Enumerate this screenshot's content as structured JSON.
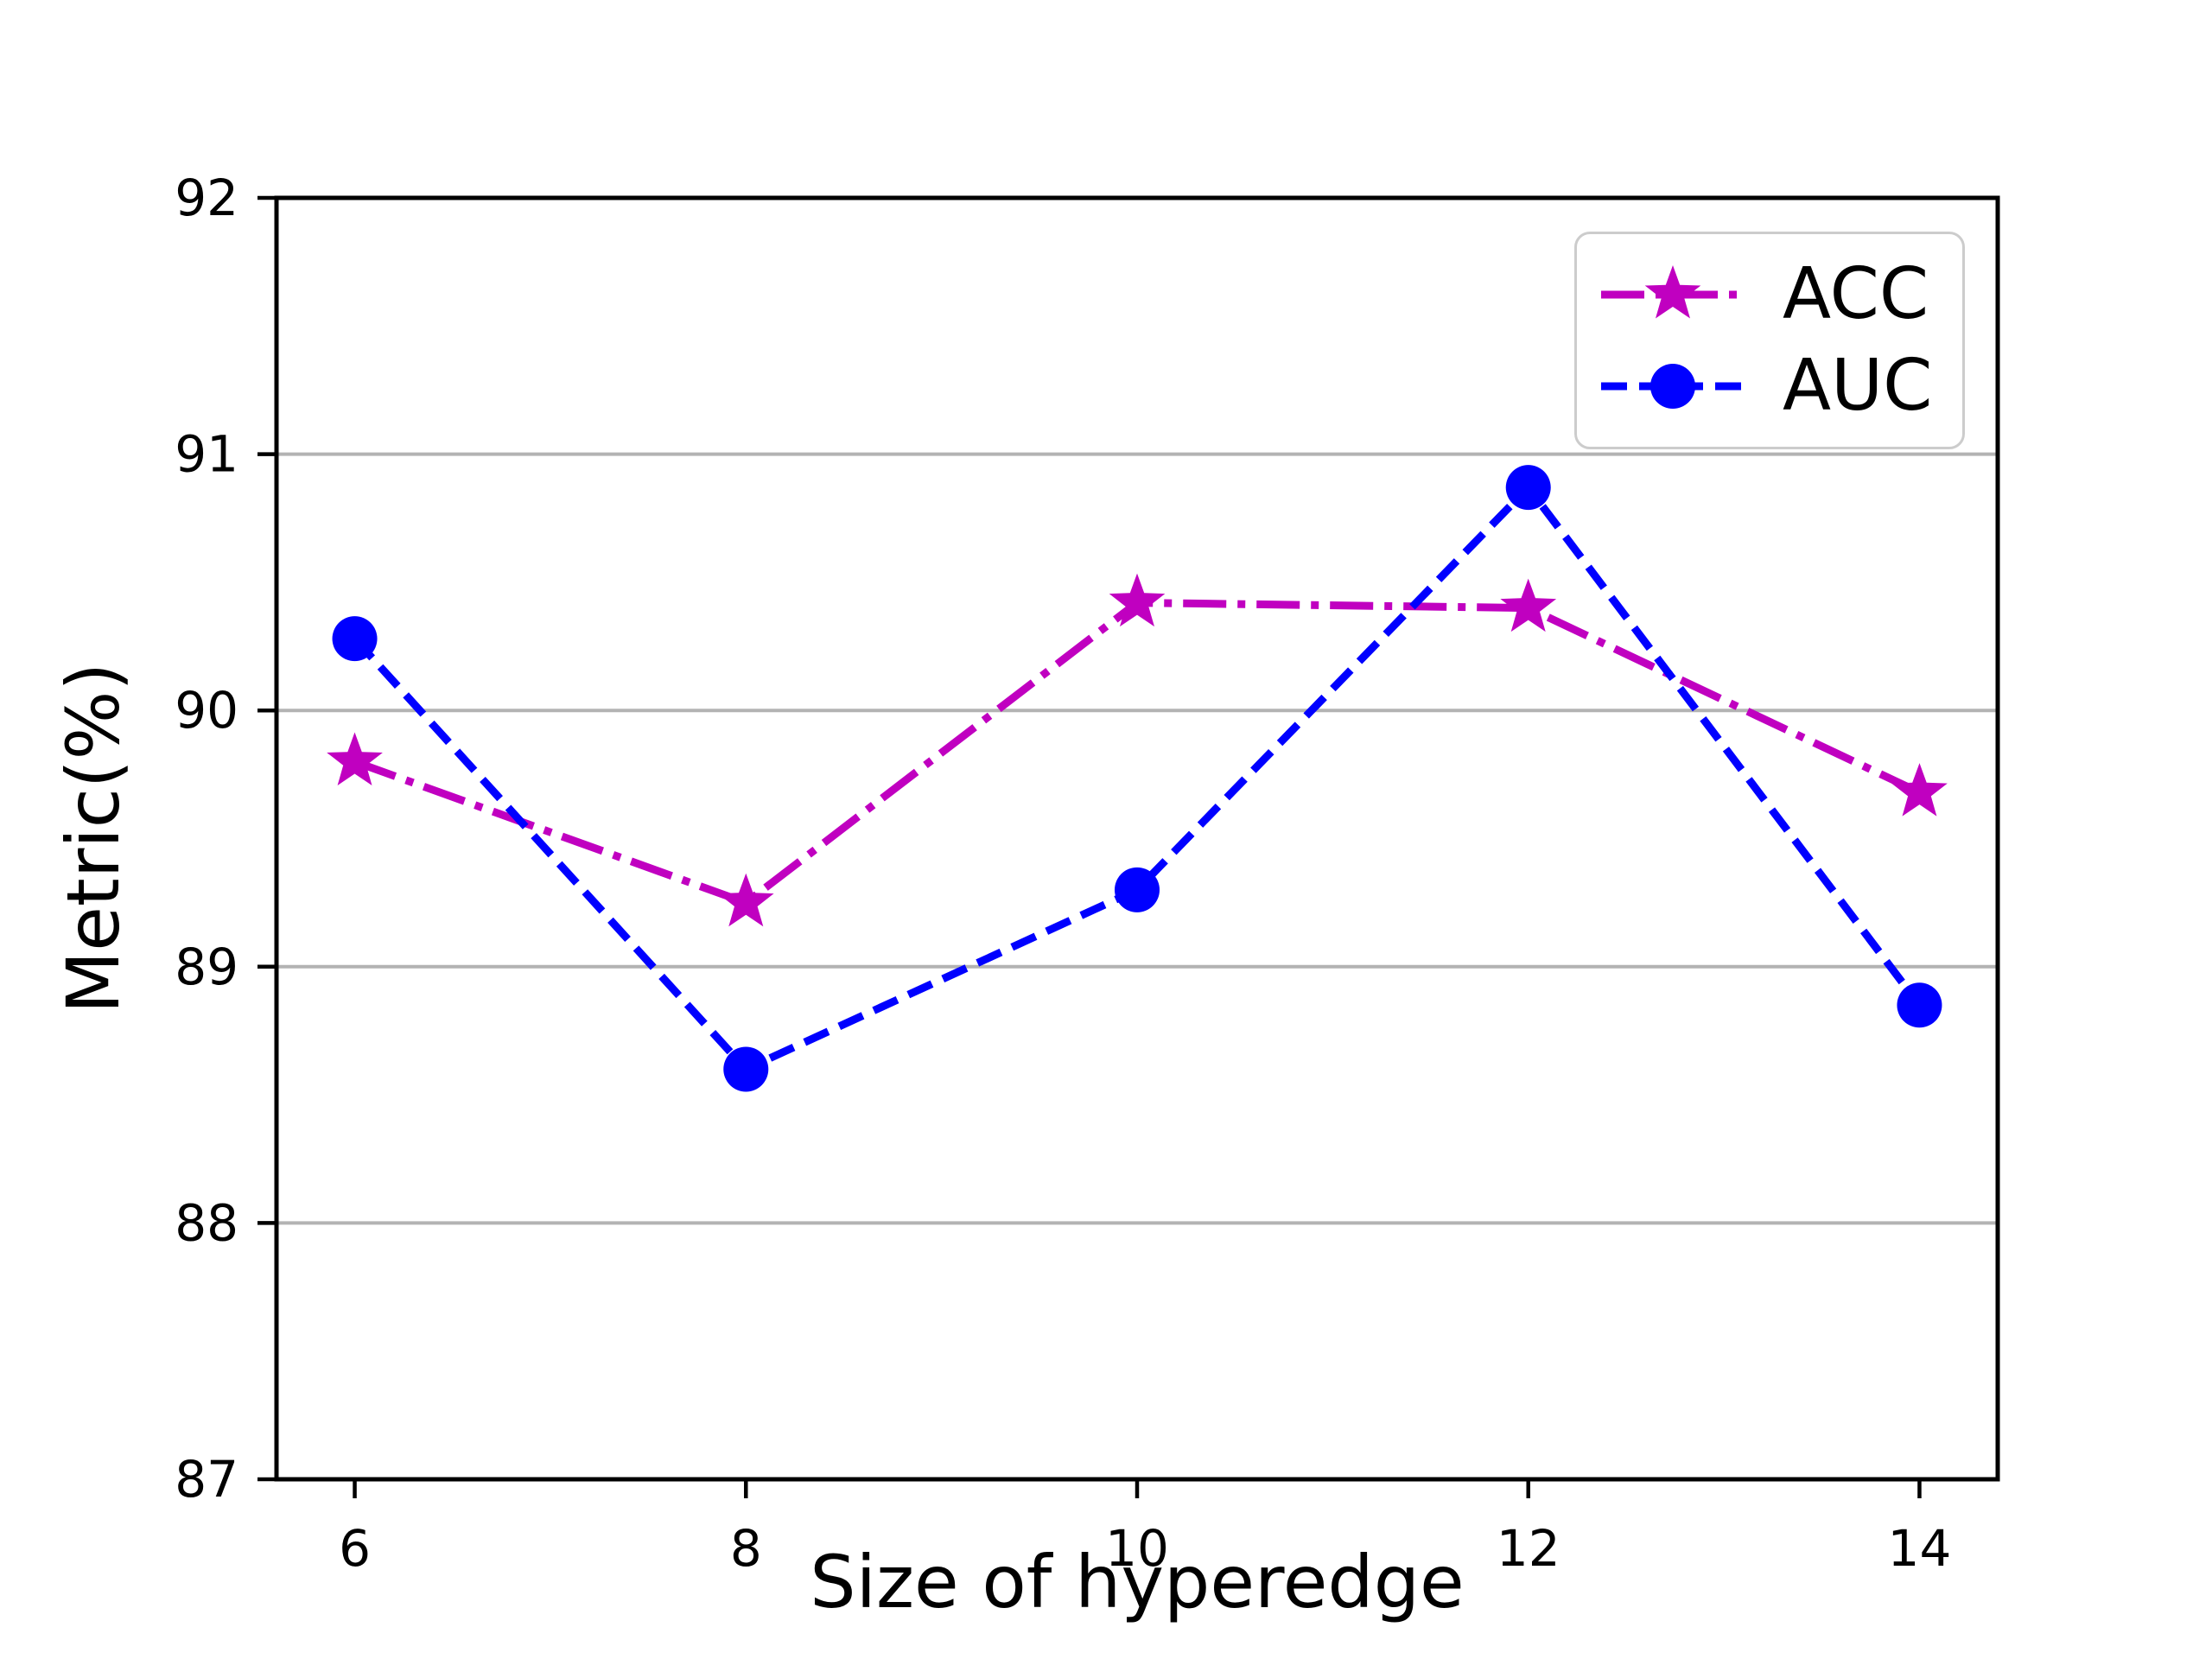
{
  "chart_data": {
    "type": "line",
    "x": [
      6,
      8,
      10,
      12,
      14
    ],
    "series": [
      {
        "name": "ACC",
        "color": "#c000c0",
        "marker": "star",
        "linestyle": "dashdot",
        "values": [
          89.8,
          89.25,
          90.42,
          90.4,
          89.68
        ]
      },
      {
        "name": "AUC",
        "color": "#0000ff",
        "marker": "circle",
        "linestyle": "dashed",
        "values": [
          90.28,
          88.6,
          89.3,
          90.87,
          88.85
        ]
      }
    ],
    "title": "",
    "xlabel": "Size of hyperedge",
    "ylabel": "Metric(%)",
    "xlim": [
      5.6,
      14.4
    ],
    "ylim": [
      87,
      92
    ],
    "xticks": [
      6,
      8,
      10,
      12,
      14
    ],
    "yticks": [
      87,
      88,
      89,
      90,
      91,
      92
    ],
    "grid": "horizontal",
    "grid_color": "#b3b3b3",
    "axis_color": "#000000",
    "tick_label_color": "#000000",
    "background": "#ffffff",
    "legend_position": "upper right"
  }
}
